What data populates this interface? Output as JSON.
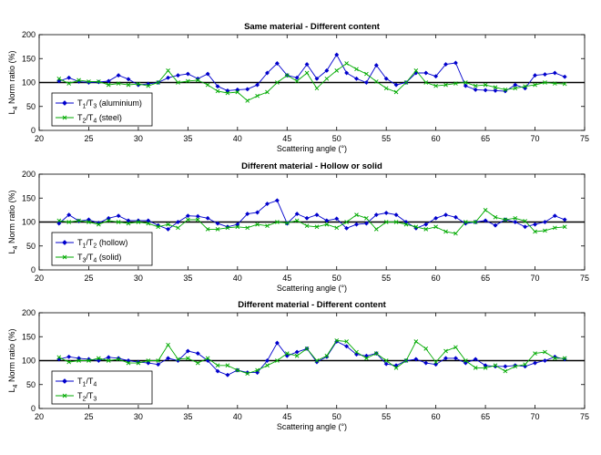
{
  "chart_data": [
    {
      "type": "line",
      "title": "Same material - Different content",
      "xlabel": "Scattering angle (°)",
      "ylabel": "Norm ratio (%)",
      "ylabel_main": "L",
      "ylabel_sub": "4",
      "xlim": [
        20,
        75
      ],
      "ylim": [
        0,
        200
      ],
      "xticks": [
        20,
        25,
        30,
        35,
        40,
        45,
        50,
        55,
        60,
        65,
        70,
        75
      ],
      "yticks": [
        0,
        50,
        100,
        150,
        200
      ],
      "reference_line": 100,
      "legend_position": "bottom-left",
      "x": [
        22,
        23,
        24,
        25,
        26,
        27,
        28,
        29,
        30,
        31,
        32,
        33,
        34,
        35,
        36,
        37,
        38,
        39,
        40,
        41,
        42,
        43,
        44,
        45,
        46,
        47,
        48,
        49,
        50,
        51,
        52,
        53,
        54,
        55,
        56,
        57,
        58,
        59,
        60,
        61,
        62,
        63,
        64,
        65,
        66,
        67,
        68,
        69,
        70,
        71,
        72,
        73
      ],
      "series": [
        {
          "legend": [
            {
              "t": "T"
            },
            {
              "t": "1",
              "sub": true
            },
            {
              "t": "/T"
            },
            {
              "t": "3",
              "sub": true
            },
            {
              "t": " (aluminium)"
            }
          ],
          "color": "#0000cc",
          "marker": "diamond",
          "values": [
            103,
            110,
            102,
            100,
            101,
            103,
            115,
            107,
            95,
            97,
            100,
            110,
            115,
            118,
            108,
            118,
            92,
            83,
            85,
            86,
            95,
            120,
            140,
            115,
            110,
            138,
            108,
            125,
            158,
            120,
            108,
            100,
            136,
            108,
            95,
            100,
            120,
            120,
            113,
            138,
            141,
            93,
            85,
            84,
            83,
            82,
            95,
            88,
            115,
            117,
            120,
            112
          ]
        },
        {
          "legend": [
            {
              "t": "T"
            },
            {
              "t": "2",
              "sub": true
            },
            {
              "t": "/T"
            },
            {
              "t": "4",
              "sub": true
            },
            {
              "t": " (steel)"
            }
          ],
          "color": "#00aa00",
          "marker": "x",
          "values": [
            108,
            98,
            105,
            102,
            102,
            95,
            98,
            95,
            97,
            93,
            100,
            125,
            100,
            103,
            105,
            95,
            82,
            78,
            80,
            62,
            72,
            80,
            100,
            115,
            103,
            120,
            88,
            108,
            125,
            140,
            128,
            118,
            102,
            88,
            80,
            100,
            125,
            100,
            93,
            95,
            98,
            100,
            93,
            95,
            90,
            85,
            88,
            92,
            95,
            100,
            98,
            97
          ]
        }
      ]
    },
    {
      "type": "line",
      "title": "Different material - Hollow or solid",
      "xlabel": "Scattering angle (°)",
      "ylabel": "Norm ratio (%)",
      "ylabel_main": "L",
      "ylabel_sub": "4",
      "xlim": [
        20,
        75
      ],
      "ylim": [
        0,
        200
      ],
      "xticks": [
        20,
        25,
        30,
        35,
        40,
        45,
        50,
        55,
        60,
        65,
        70,
        75
      ],
      "yticks": [
        0,
        50,
        100,
        150,
        200
      ],
      "reference_line": 100,
      "legend_position": "bottom-left",
      "x": [
        22,
        23,
        24,
        25,
        26,
        27,
        28,
        29,
        30,
        31,
        32,
        33,
        34,
        35,
        36,
        37,
        38,
        39,
        40,
        41,
        42,
        43,
        44,
        45,
        46,
        47,
        48,
        49,
        50,
        51,
        52,
        53,
        54,
        55,
        56,
        57,
        58,
        59,
        60,
        61,
        62,
        63,
        64,
        65,
        66,
        67,
        68,
        69,
        70,
        71,
        72,
        73
      ],
      "series": [
        {
          "legend": [
            {
              "t": "T"
            },
            {
              "t": "1",
              "sub": true
            },
            {
              "t": "/T"
            },
            {
              "t": "2",
              "sub": true
            },
            {
              "t": " (hollow)"
            }
          ],
          "color": "#0000cc",
          "marker": "diamond",
          "values": [
            97,
            115,
            102,
            105,
            98,
            108,
            113,
            103,
            103,
            103,
            93,
            85,
            100,
            113,
            112,
            108,
            97,
            90,
            95,
            117,
            120,
            138,
            145,
            97,
            117,
            108,
            115,
            103,
            107,
            87,
            95,
            97,
            115,
            119,
            115,
            100,
            87,
            95,
            108,
            115,
            110,
            97,
            100,
            103,
            93,
            105,
            100,
            90,
            95,
            100,
            113,
            105
          ]
        },
        {
          "legend": [
            {
              "t": "T"
            },
            {
              "t": "3",
              "sub": true
            },
            {
              "t": "/T"
            },
            {
              "t": "4",
              "sub": true
            },
            {
              "t": " (solid)"
            }
          ],
          "color": "#00aa00",
          "marker": "x",
          "values": [
            103,
            100,
            103,
            100,
            95,
            103,
            100,
            97,
            100,
            97,
            90,
            95,
            88,
            105,
            105,
            85,
            85,
            88,
            90,
            88,
            95,
            92,
            100,
            98,
            103,
            92,
            90,
            95,
            88,
            100,
            115,
            108,
            85,
            100,
            100,
            95,
            90,
            85,
            90,
            80,
            76,
            100,
            100,
            125,
            110,
            105,
            108,
            102,
            80,
            82,
            88,
            90
          ]
        }
      ]
    },
    {
      "type": "line",
      "title": "Different material - Different content",
      "xlabel": "Scattering angle (°)",
      "ylabel": "Norm ratio (%)",
      "ylabel_main": "L",
      "ylabel_sub": "4",
      "xlim": [
        20,
        75
      ],
      "ylim": [
        0,
        200
      ],
      "xticks": [
        20,
        25,
        30,
        35,
        40,
        45,
        50,
        55,
        60,
        65,
        70,
        75
      ],
      "yticks": [
        0,
        50,
        100,
        150,
        200
      ],
      "reference_line": 100,
      "legend_position": "bottom-left",
      "x": [
        22,
        23,
        24,
        25,
        26,
        27,
        28,
        29,
        30,
        31,
        32,
        33,
        34,
        35,
        36,
        37,
        38,
        39,
        40,
        41,
        42,
        43,
        44,
        45,
        46,
        47,
        48,
        49,
        50,
        51,
        52,
        53,
        54,
        55,
        56,
        57,
        58,
        59,
        60,
        61,
        62,
        63,
        64,
        65,
        66,
        67,
        68,
        69,
        70,
        71,
        72,
        73
      ],
      "series": [
        {
          "legend": [
            {
              "t": "T"
            },
            {
              "t": "1",
              "sub": true
            },
            {
              "t": "/T"
            },
            {
              "t": "4",
              "sub": true
            }
          ],
          "color": "#0000cc",
          "marker": "diamond",
          "values": [
            103,
            108,
            105,
            103,
            100,
            107,
            105,
            100,
            97,
            95,
            92,
            105,
            100,
            120,
            115,
            100,
            78,
            70,
            80,
            75,
            75,
            100,
            137,
            110,
            118,
            125,
            97,
            108,
            140,
            130,
            113,
            110,
            115,
            93,
            90,
            100,
            103,
            95,
            92,
            105,
            105,
            95,
            103,
            90,
            88,
            88,
            90,
            88,
            95,
            100,
            108,
            103
          ]
        },
        {
          "legend": [
            {
              "t": "T"
            },
            {
              "t": "2",
              "sub": true
            },
            {
              "t": "/T"
            },
            {
              "t": "3",
              "sub": true
            }
          ],
          "color": "#00aa00",
          "marker": "x",
          "values": [
            107,
            97,
            100,
            100,
            105,
            100,
            103,
            95,
            95,
            100,
            100,
            133,
            103,
            105,
            95,
            105,
            90,
            90,
            80,
            73,
            80,
            90,
            100,
            115,
            110,
            125,
            100,
            110,
            142,
            140,
            118,
            105,
            115,
            100,
            85,
            100,
            140,
            125,
            97,
            120,
            128,
            100,
            85,
            85,
            90,
            78,
            88,
            92,
            115,
            118,
            105,
            105
          ]
        }
      ]
    }
  ]
}
